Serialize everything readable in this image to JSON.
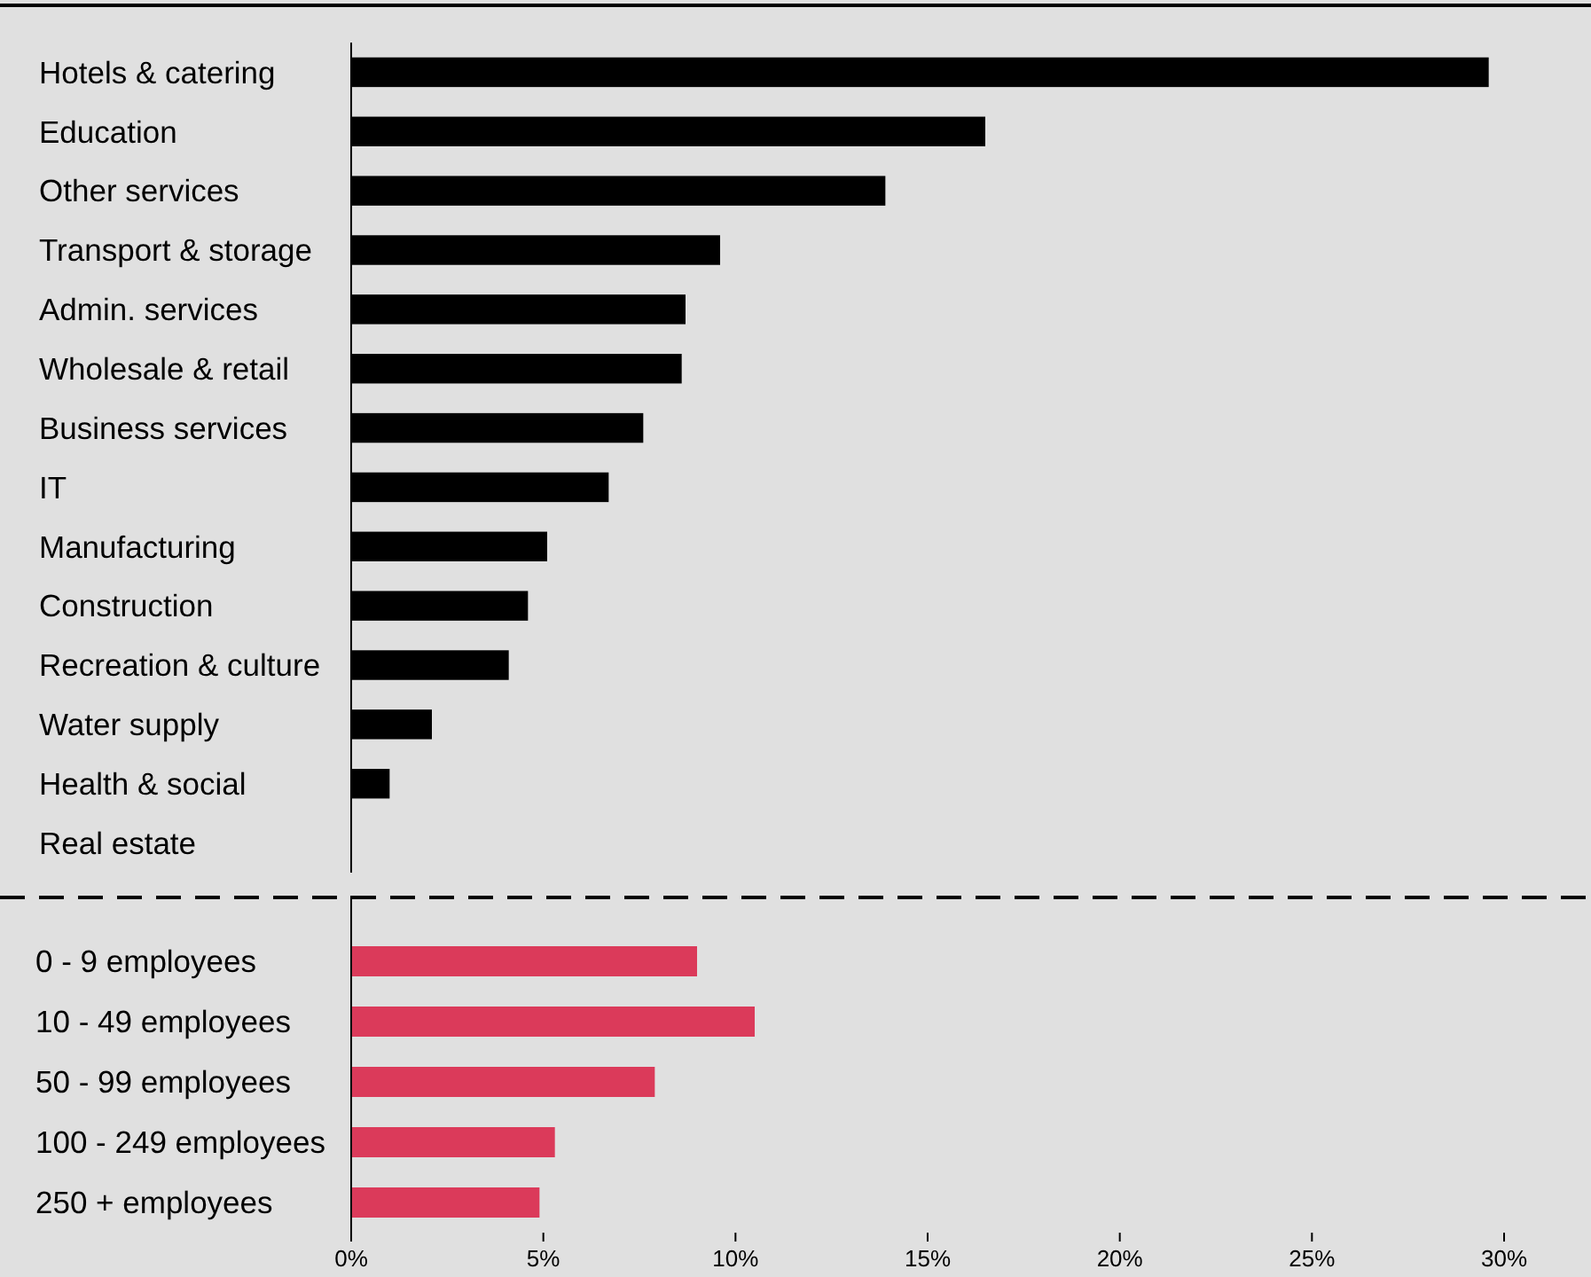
{
  "chart_data": [
    {
      "type": "bar",
      "orientation": "horizontal",
      "categories": [
        "Hotels & catering",
        "Education",
        "Other services",
        "Transport & storage",
        "Admin. services",
        "Wholesale & retail",
        "Business services",
        "IT",
        "Manufacturing",
        "Construction",
        "Recreation & culture",
        "Water supply",
        "Health & social",
        "Real estate"
      ],
      "values": [
        29.6,
        16.5,
        13.9,
        9.6,
        8.7,
        8.6,
        7.6,
        6.7,
        5.1,
        4.6,
        4.1,
        2.1,
        1.0,
        0
      ],
      "color": "#000000",
      "xlim": [
        0,
        30
      ],
      "tick_labels": "y",
      "grid": false
    },
    {
      "type": "bar",
      "orientation": "horizontal",
      "categories": [
        "0 - 9 employees",
        "10 - 49 employees",
        "50 - 99 employees",
        "100 - 249 employees",
        "250 + employees"
      ],
      "values": [
        9.0,
        10.5,
        7.9,
        5.3,
        4.9
      ],
      "color": "#db3a5a",
      "xlim": [
        0,
        30
      ],
      "xticks": [
        {
          "value": 0,
          "label": "0%"
        },
        {
          "value": 5,
          "label": "5%"
        },
        {
          "value": 10,
          "label": "10%"
        },
        {
          "value": 15,
          "label": "15%"
        },
        {
          "value": 20,
          "label": "20%"
        },
        {
          "value": 25,
          "label": "25%"
        },
        {
          "value": 30,
          "label": "30%"
        }
      ],
      "grid": false
    }
  ]
}
